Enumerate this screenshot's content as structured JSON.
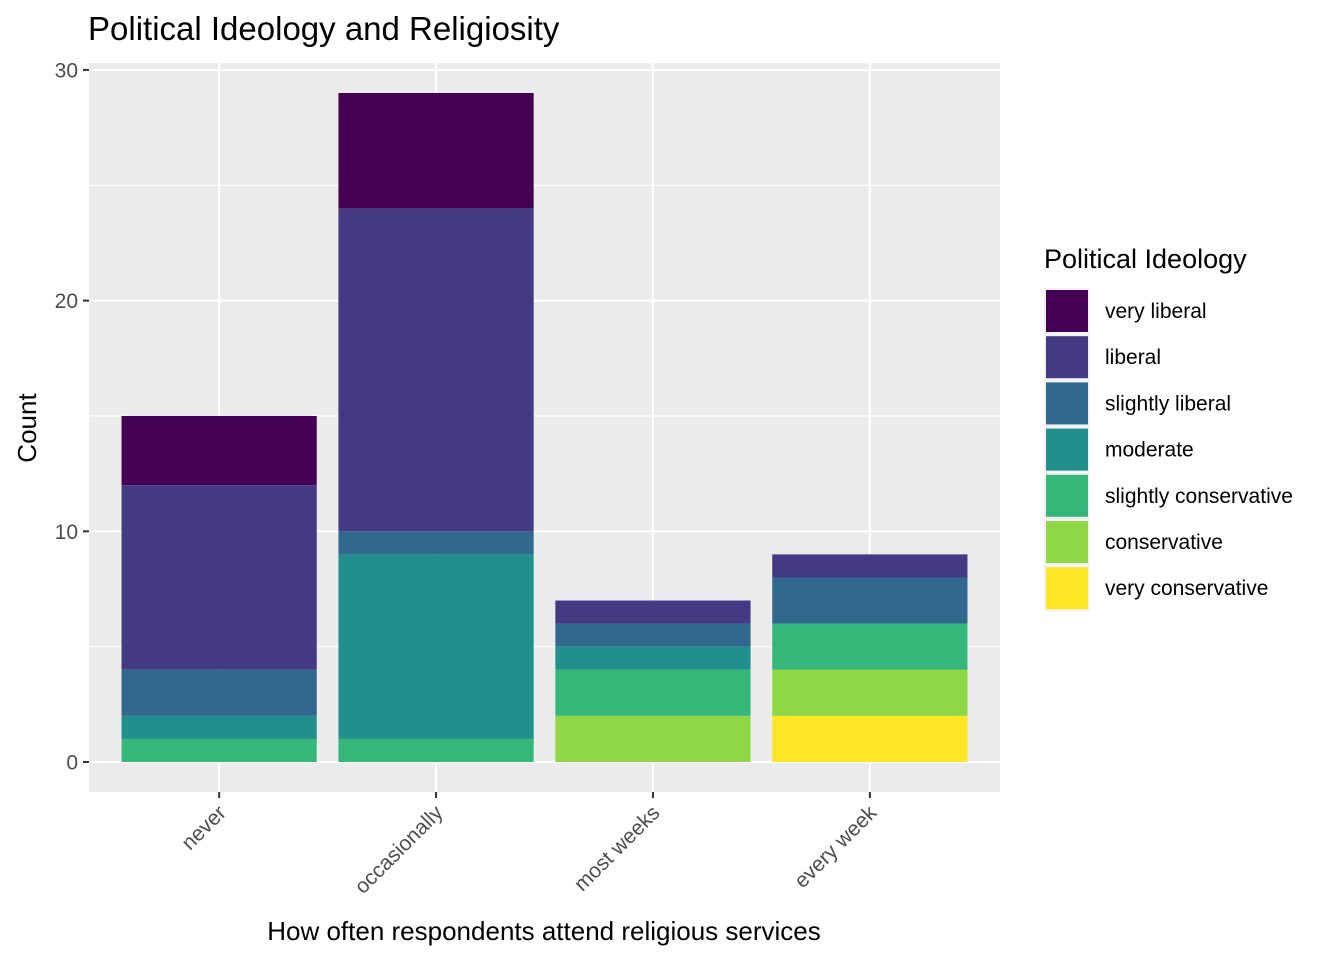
{
  "chart_data": {
    "type": "bar",
    "stacked": true,
    "title": "Political Ideology and Religiosity",
    "xlabel": "How often respondents attend religious services",
    "ylabel": "Count",
    "ylim": [
      -1.3,
      30.3
    ],
    "yticks": [
      0,
      10,
      20,
      30
    ],
    "grid": true,
    "legend_position": "right",
    "legend_title": "Political Ideology",
    "categories": [
      "never",
      "occasionally",
      "most weeks",
      "every week"
    ],
    "series": [
      {
        "name": "very liberal",
        "color": "#440154",
        "values": [
          3,
          5,
          0,
          0
        ]
      },
      {
        "name": "liberal",
        "color": "#443A83",
        "values": [
          8,
          14,
          1,
          1
        ]
      },
      {
        "name": "slightly liberal",
        "color": "#31688E",
        "values": [
          2,
          1,
          1,
          2
        ]
      },
      {
        "name": "moderate",
        "color": "#21908C",
        "values": [
          1,
          8,
          1,
          0
        ]
      },
      {
        "name": "slightly conservative",
        "color": "#35B779",
        "values": [
          1,
          1,
          2,
          2
        ]
      },
      {
        "name": "conservative",
        "color": "#8FD744",
        "values": [
          0,
          0,
          2,
          2
        ]
      },
      {
        "name": "very conservative",
        "color": "#FDE725",
        "values": [
          0,
          0,
          0,
          2
        ]
      }
    ]
  }
}
